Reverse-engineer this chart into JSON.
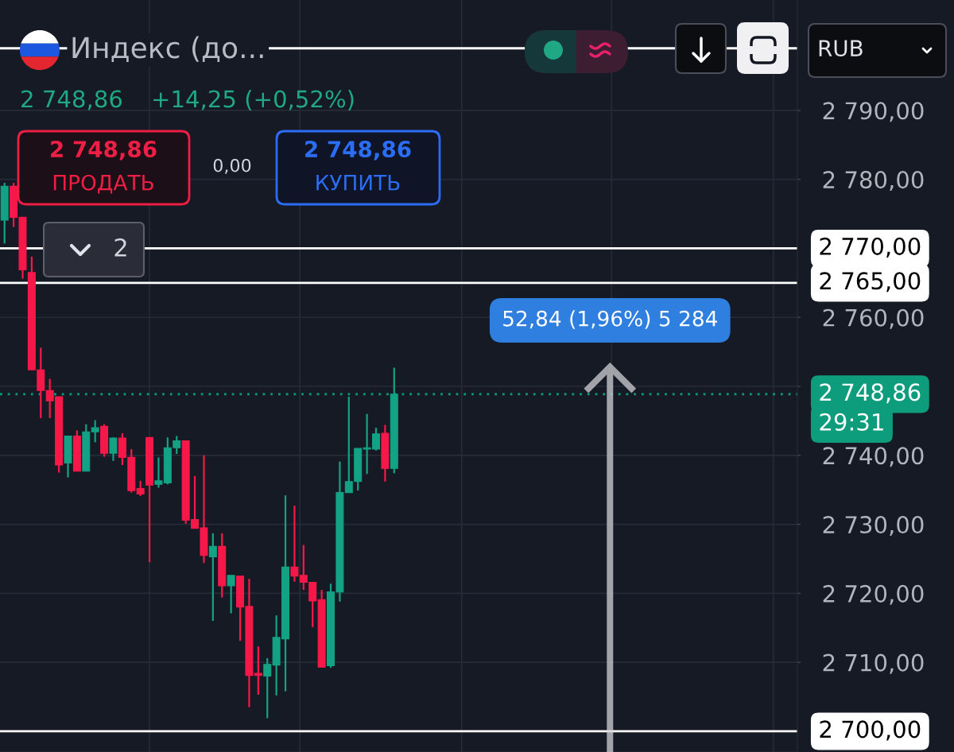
{
  "chart_data": {
    "type": "candlestick",
    "title": "Индекс (до...",
    "categories": [
      null,
      null,
      null,
      null,
      null,
      null,
      null,
      null,
      null,
      null,
      null,
      null,
      null,
      null,
      null,
      null,
      null,
      null,
      null,
      null,
      null,
      null,
      null,
      null,
      null,
      null,
      null,
      null,
      null,
      null,
      null,
      null,
      null,
      null,
      null,
      null,
      null,
      null,
      null,
      null,
      null,
      null,
      null,
      null,
      null,
      null,
      null,
      null,
      null,
      null,
      null,
      null,
      null,
      null,
      null,
      null,
      null,
      null,
      null,
      null,
      null,
      null,
      null,
      null,
      null,
      null,
      null,
      null,
      null,
      null,
      null,
      null,
      null,
      null,
      null,
      null,
      null,
      null,
      null,
      null,
      null,
      null,
      null,
      null,
      null,
      null,
      null,
      null
    ],
    "ohlc": [
      [
        2774.1,
        2779.5,
        2770.7,
        2779.0
      ],
      [
        2779.0,
        2779.5,
        2773.1,
        2774.5
      ],
      [
        2774.5,
        2774.5,
        2765.6,
        2766.9
      ],
      [
        2766.5,
        2768.8,
        2752.4,
        2752.4
      ],
      [
        2752.4,
        2755.6,
        2745.4,
        2749.4
      ],
      [
        2749.4,
        2751.1,
        2745.4,
        2747.9
      ],
      [
        2748.5,
        2748.5,
        2737.5,
        2738.6
      ],
      [
        2738.9,
        2742.8,
        2736.8,
        2742.8
      ],
      [
        2742.8,
        2743.6,
        2737.7,
        2737.7
      ],
      [
        2737.7,
        2744.5,
        2737.7,
        2743.4
      ],
      [
        2743.4,
        2745.1,
        2741.9,
        2744.0
      ],
      [
        2744.2,
        2744.5,
        2739.8,
        2740.3
      ],
      [
        2740.3,
        2742.6,
        2739.2,
        2742.5
      ],
      [
        2742.5,
        2743.2,
        2738.6,
        2739.7
      ],
      [
        2739.7,
        2740.9,
        2734.6,
        2734.9
      ],
      [
        2735.2,
        2736.3,
        2734.1,
        2734.4
      ],
      [
        2742.6,
        2742.6,
        2724.5,
        2735.7
      ],
      [
        2735.8,
        2739.7,
        2735.3,
        2736.3
      ],
      [
        2736.0,
        2742.6,
        2735.8,
        2741.1
      ],
      [
        2741.1,
        2742.8,
        2740.2,
        2742.1
      ],
      [
        2742.1,
        2742.1,
        2730.1,
        2730.6
      ],
      [
        2730.7,
        2737.0,
        2729.4,
        2729.4
      ],
      [
        2729.5,
        2740.0,
        2724.4,
        2725.5
      ],
      [
        2725.3,
        2728.7,
        2716.0,
        2726.8
      ],
      [
        2726.8,
        2728.7,
        2719.4,
        2721.1
      ],
      [
        2721.1,
        2722.6,
        2717.1,
        2722.6
      ],
      [
        2722.5,
        2722.5,
        2713.1,
        2718.0
      ],
      [
        2718.1,
        2722.1,
        2703.5,
        2708.1
      ],
      [
        2708.4,
        2712.3,
        2705.3,
        2708.1
      ],
      [
        2708.0,
        2710.6,
        2701.9,
        2709.7
      ],
      [
        2709.6,
        2716.8,
        2705.2,
        2713.6
      ],
      [
        2713.4,
        2734.2,
        2705.8,
        2723.8
      ],
      [
        2723.8,
        2732.7,
        2721.7,
        2722.5
      ],
      [
        2722.6,
        2727.0,
        2720.5,
        2721.6
      ],
      [
        2721.6,
        2721.6,
        2715.1,
        2718.9
      ],
      [
        2719.1,
        2720.5,
        2709.3,
        2709.3
      ],
      [
        2709.5,
        2721.4,
        2709.2,
        2720.2
      ],
      [
        2720.2,
        2739.1,
        2718.8,
        2734.6
      ],
      [
        2734.6,
        2748.5,
        2734.6,
        2736.2
      ],
      [
        2736.2,
        2741.0,
        2734.9,
        2741.0
      ],
      [
        2740.9,
        2746.0,
        2737.3,
        2741.1
      ],
      [
        2740.9,
        2744.0,
        2740.7,
        2743.1
      ],
      [
        2743.2,
        2744.4,
        2736.2,
        2738.1
      ],
      [
        2738.1,
        2752.7,
        2737.4,
        2748.86
      ],
      null,
      null,
      null,
      null,
      null,
      null,
      null,
      null,
      null,
      null,
      null,
      null,
      null,
      null,
      null,
      null,
      null,
      null,
      null,
      null,
      null,
      null,
      null,
      null,
      null,
      null,
      null,
      null,
      null,
      null,
      null,
      null,
      null,
      null,
      null,
      null,
      null,
      null,
      null,
      null,
      null,
      null,
      null,
      null
    ],
    "colors": [
      "#13a283",
      "#f7184a",
      "#f7184a",
      "#f7184a",
      "#f7184a",
      "#f7184a",
      "#f7184a",
      "#13a283",
      "#f7184a",
      "#13a283",
      "#13a283",
      "#f7184a",
      "#13a283",
      "#f7184a",
      "#f7184a",
      "#f7184a",
      "#f7184a",
      "#13a283",
      "#13a283",
      "#13a283",
      "#f7184a",
      "#f7184a",
      "#f7184a",
      "#13a283",
      "#f7184a",
      "#13a283",
      "#f7184a",
      "#f7184a",
      "#f7184a",
      "#13a283",
      "#13a283",
      "#13a283",
      "#f7184a",
      "#f7184a",
      "#f7184a",
      "#f7184a",
      "#13a283",
      "#13a283",
      "#13a283",
      "#13a283",
      "#13a283",
      "#13a283",
      "#f7184a",
      "#13a283",
      null,
      null,
      null,
      null,
      null,
      null,
      null,
      null,
      null,
      null,
      null,
      null,
      null,
      null,
      null,
      null,
      null,
      null,
      null,
      null,
      null,
      null,
      null,
      null,
      null,
      null,
      null,
      null,
      null,
      null,
      null,
      null,
      null,
      null,
      null,
      null,
      null,
      null,
      null,
      null,
      null,
      null,
      null,
      null
    ],
    "ylim": [
      2697,
      2806
    ],
    "yticks": [
      {
        "value": 2710,
        "label": "2 710,00"
      },
      {
        "value": 2720,
        "label": "2 720,00"
      },
      {
        "value": 2730,
        "label": "2 730,00"
      },
      {
        "value": 2740,
        "label": "2 740,00"
      },
      {
        "value": 2750,
        "label": null
      },
      {
        "value": 2760,
        "label": "2 760,00"
      },
      {
        "value": 2780,
        "label": "2 780,00"
      },
      {
        "value": 2790,
        "label": "2 790,00"
      }
    ],
    "tick_labels": "y",
    "grid": true,
    "ref_lines": [
      {
        "axis": "y",
        "value": 2799,
        "color": "#ffffff",
        "line_style": "solid"
      },
      {
        "axis": "y",
        "value": 2770,
        "label": "2 770,00",
        "color": "#ffffff",
        "line_style": "solid"
      },
      {
        "axis": "y",
        "value": 2765,
        "label": "2 765,00",
        "color": "#ffffff",
        "line_style": "solid"
      },
      {
        "axis": "y",
        "value": 2700,
        "label": "2 700,00",
        "color": "#ffffff",
        "line_style": "solid"
      },
      {
        "axis": "y",
        "value": 2748.86,
        "label": "2 748,86",
        "color": "#0e9d7c",
        "line_style": "dotted"
      }
    ],
    "annotations": [
      "2 748,86",
      "+14,25 (+0,52%)",
      "2 748,86",
      "ПРОДАТЬ",
      "0,00",
      "2 748,86",
      "КУПИТЬ",
      "2",
      "RUB",
      "29:31",
      "52,84 (1,96%) 5 284"
    ]
  }
}
